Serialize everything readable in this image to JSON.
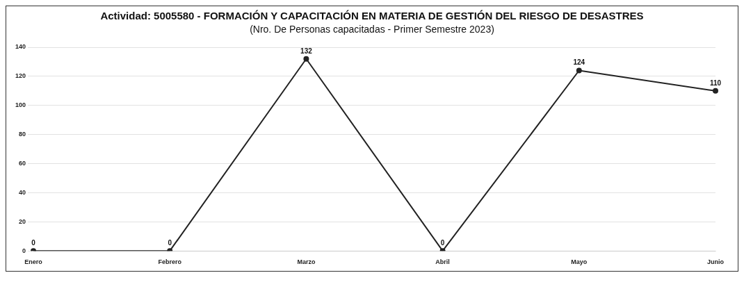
{
  "chart_data": {
    "type": "line",
    "title": "Actividad: 5005580 - FORMACIÓN Y CAPACITACIÓN EN MATERIA DE GESTIÓN DEL RIESGO DE DESASTRES",
    "subtitle": "(Nro. De Personas capacitadas - Primer Semestre 2023)",
    "categories": [
      "Enero",
      "Febrero",
      "Marzo",
      "Abril",
      "Mayo",
      "Junio"
    ],
    "series": [
      {
        "color": "#222222",
        "values": [
          0,
          0,
          132,
          0,
          124,
          110
        ]
      }
    ],
    "ylim": [
      0,
      140
    ],
    "yticks": [
      0,
      20,
      40,
      60,
      80,
      100,
      120,
      140
    ],
    "grid": "y",
    "marker": "circle",
    "line_style": "solid",
    "data_labels": true,
    "legend": false
  }
}
